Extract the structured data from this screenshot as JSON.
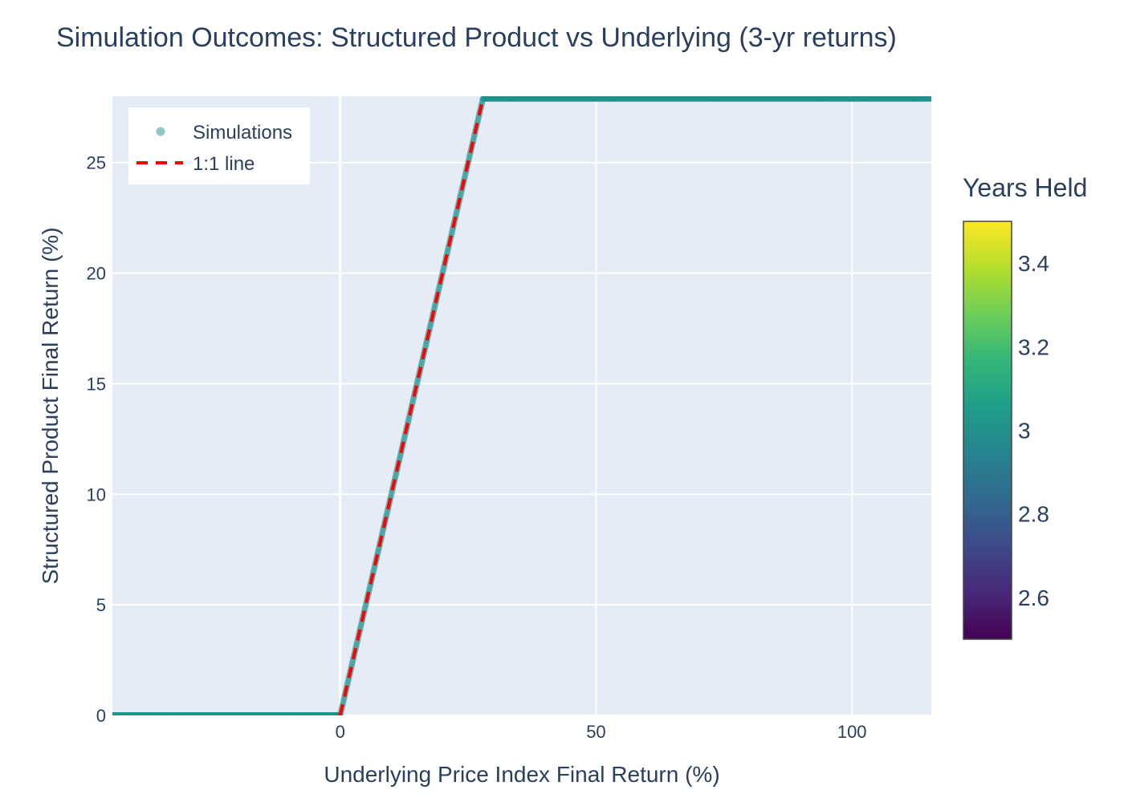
{
  "chart_data": {
    "type": "scatter",
    "title": "Simulation Outcomes: Structured Product vs Underlying (3-yr returns)",
    "xlabel": "Underlying Price Index Final Return (%)",
    "ylabel": "Structured Product Final Return (%)",
    "xlim": [
      -44.5,
      115.5
    ],
    "ylim": [
      0,
      28
    ],
    "x_ticks": [
      0,
      50,
      100
    ],
    "y_ticks": [
      0,
      5,
      10,
      15,
      20,
      25
    ],
    "grid": true,
    "plot_bg": "#e5ecf6",
    "legend": {
      "placement": "top-left",
      "entries": [
        "Simulations",
        "1:1 line"
      ]
    },
    "series": [
      {
        "name": "Simulations",
        "kind": "markers",
        "color": "#21908d",
        "payoff": {
          "floor": 0,
          "cap": 27.9,
          "slope": 1
        },
        "x_range": [
          -44.5,
          115.5
        ],
        "marker_value": 3
      },
      {
        "name": "1:1 line",
        "kind": "line",
        "dash": "dash",
        "color": "#ff0000",
        "x": [
          0,
          27.9
        ],
        "y": [
          0,
          27.9
        ]
      }
    ],
    "colorbar": {
      "title": "Years Held",
      "colorscale": "Viridis",
      "range": [
        2.5,
        3.5
      ],
      "tick_values": [
        2.6,
        2.8,
        3,
        3.2,
        3.4
      ],
      "tick_labels": [
        "2.6",
        "2.8",
        "3",
        "3.2",
        "3.4"
      ]
    }
  }
}
